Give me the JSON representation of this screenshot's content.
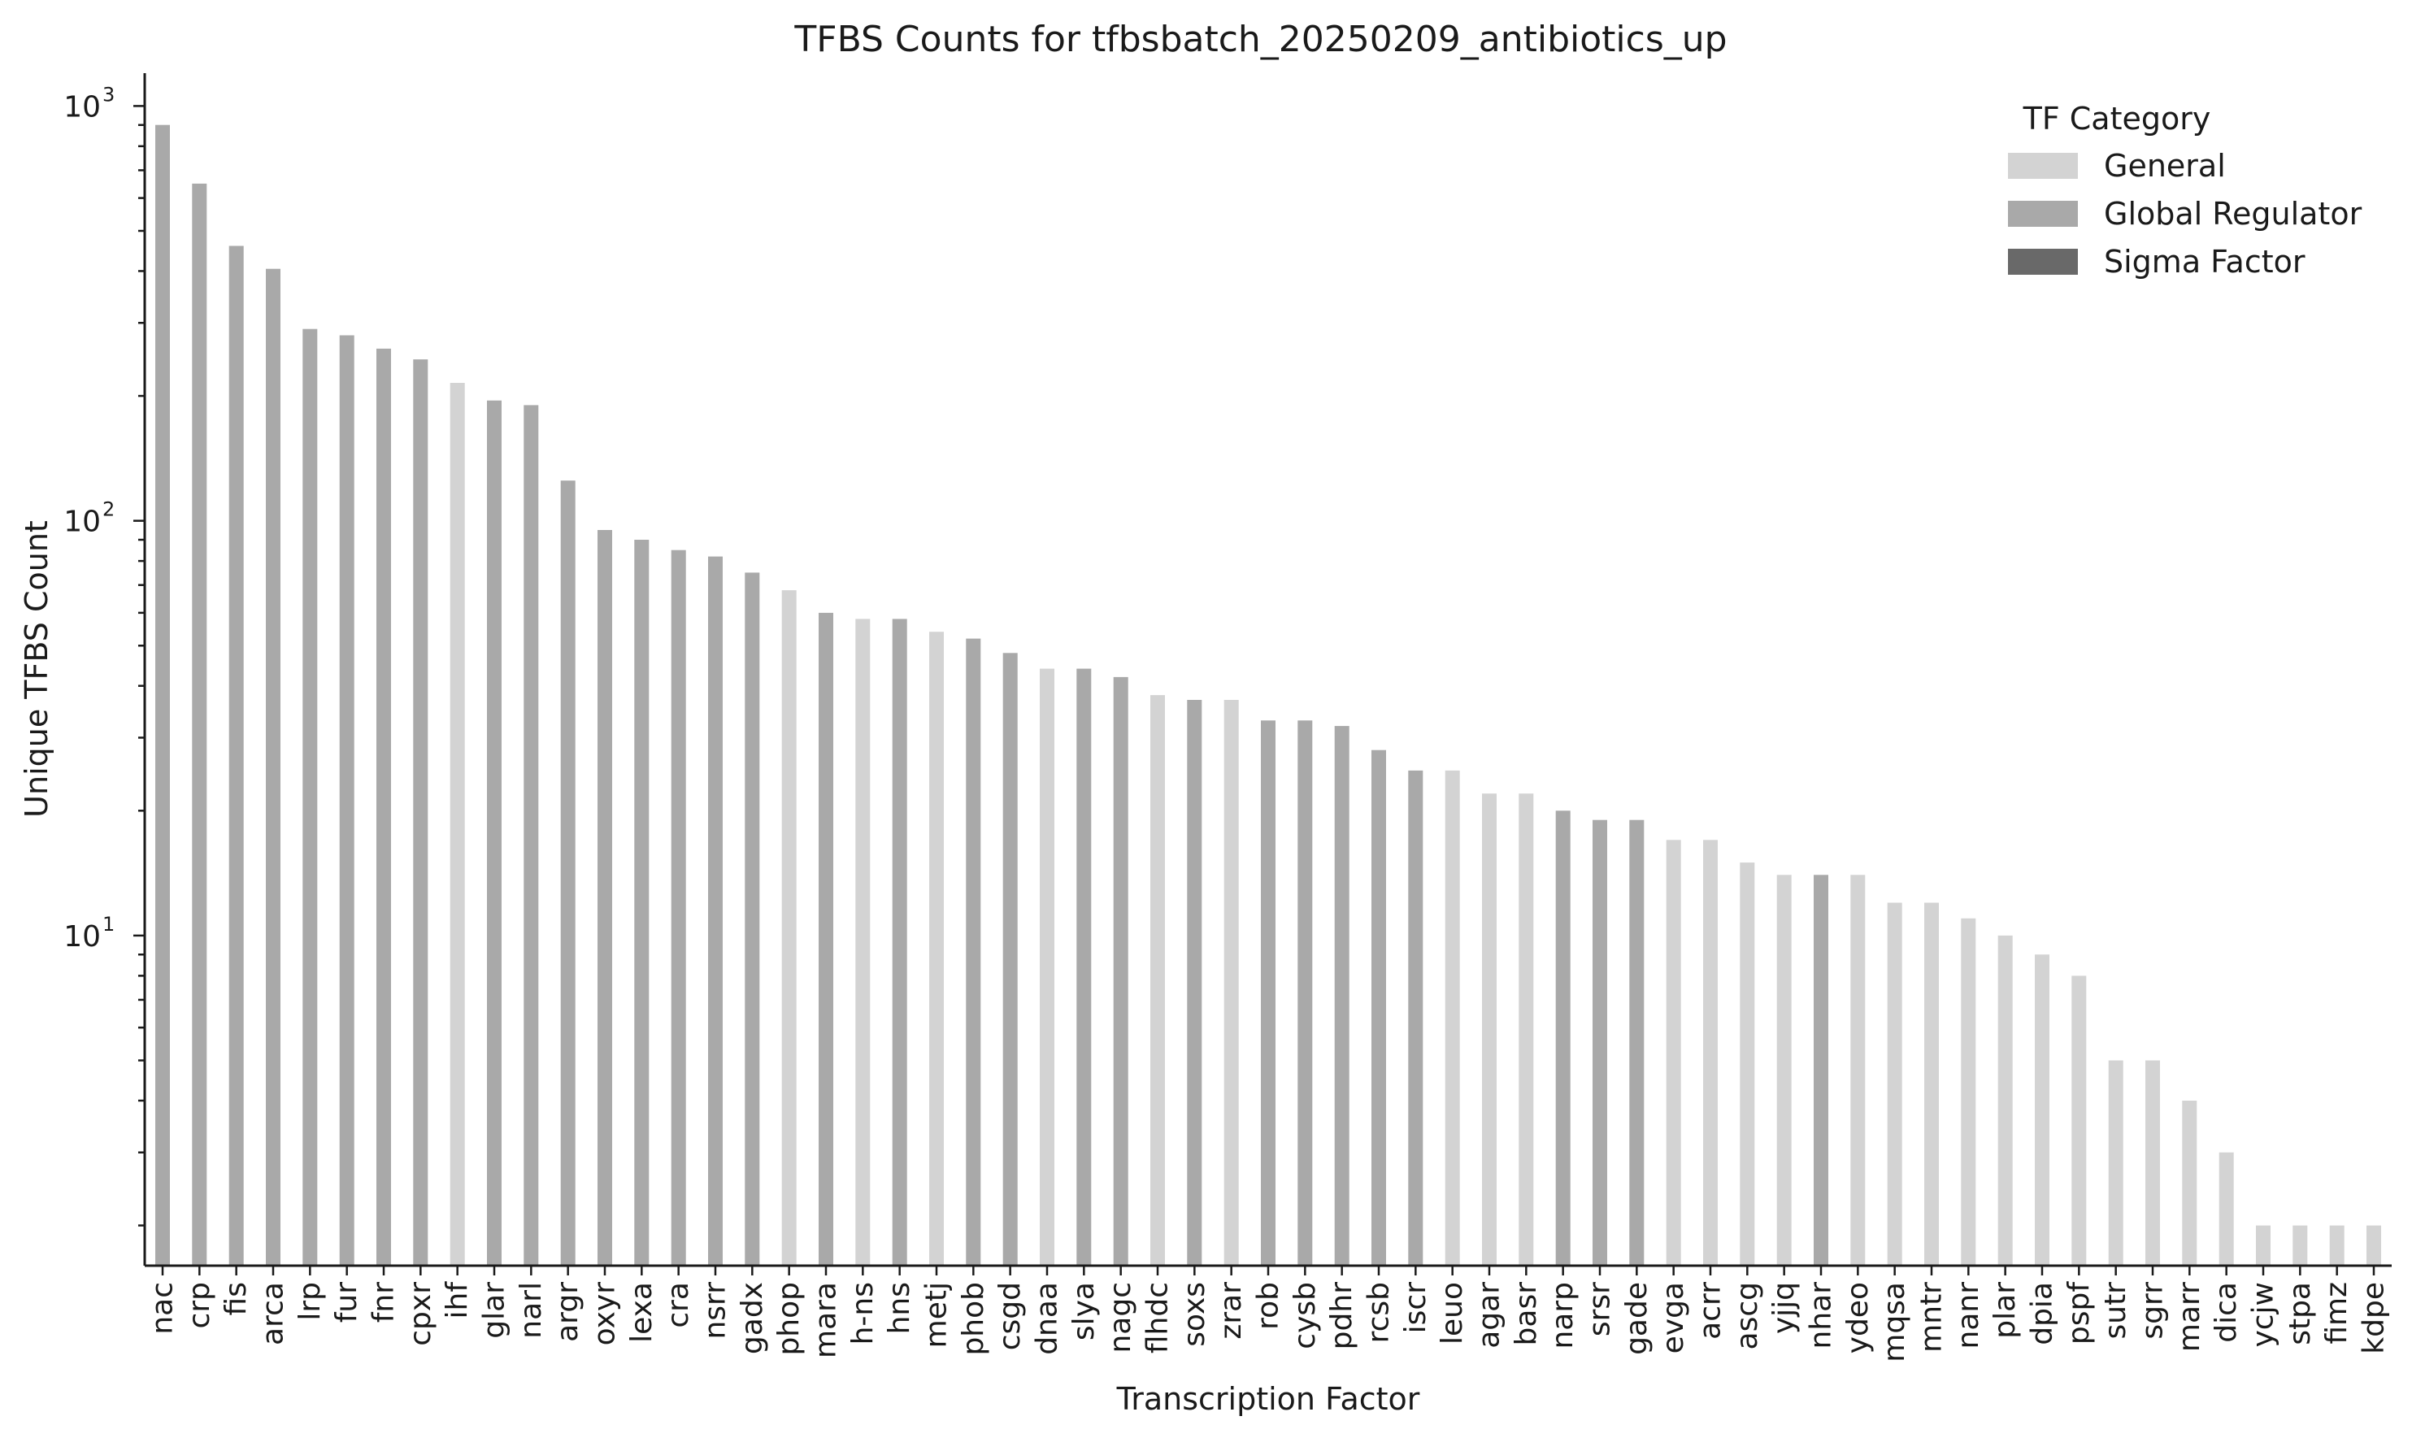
{
  "chart_data": {
    "type": "bar",
    "title": "TFBS Counts for tfbsbatch_20250209_antibiotics_up",
    "xlabel": "Transcription Factor",
    "ylabel": "Unique TFBS Count",
    "yscale": "log",
    "ylim": [
      1.6,
      1200
    ],
    "y_ticks": [
      {
        "value": 10,
        "base": "10",
        "exp": "1"
      },
      {
        "value": 100,
        "base": "10",
        "exp": "2"
      },
      {
        "value": 1000,
        "base": "10",
        "exp": "3"
      }
    ],
    "grid": false,
    "legend": {
      "title": "TF Category",
      "placement": "top-right",
      "entries": [
        {
          "key": "general",
          "label": "General",
          "color": "#d3d3d3"
        },
        {
          "key": "global",
          "label": "Global Regulator",
          "color": "#a9a9a9"
        },
        {
          "key": "sigma",
          "label": "Sigma Factor",
          "color": "#696969"
        }
      ]
    },
    "colors": {
      "general": "#d3d3d3",
      "global": "#a9a9a9",
      "sigma": "#696969"
    },
    "categories": [
      "nac",
      "crp",
      "fis",
      "arca",
      "lrp",
      "fur",
      "fnr",
      "cpxr",
      "ihf",
      "glar",
      "narl",
      "argr",
      "oxyr",
      "lexa",
      "cra",
      "nsrr",
      "gadx",
      "phop",
      "mara",
      "h-ns",
      "hns",
      "metj",
      "phob",
      "csgd",
      "dnaa",
      "slya",
      "nagc",
      "flhdc",
      "soxs",
      "zrar",
      "rob",
      "cysb",
      "pdhr",
      "rcsb",
      "iscr",
      "leuo",
      "agar",
      "basr",
      "narp",
      "srsr",
      "gade",
      "evga",
      "acrr",
      "ascg",
      "yjjq",
      "nhar",
      "ydeo",
      "mqsa",
      "mntr",
      "nanr",
      "plar",
      "dpia",
      "pspf",
      "sutr",
      "sgrr",
      "marr",
      "dica",
      "ycjw",
      "stpa",
      "fimz",
      "kdpe"
    ],
    "values": [
      900,
      650,
      460,
      405,
      290,
      280,
      260,
      245,
      215,
      195,
      190,
      125,
      95,
      90,
      85,
      82,
      75,
      68,
      60,
      58,
      58,
      54,
      52,
      48,
      44,
      44,
      42,
      38,
      37,
      37,
      33,
      33,
      32,
      28,
      25,
      25,
      22,
      22,
      20,
      19,
      19,
      17,
      17,
      15,
      14,
      14,
      14,
      12,
      12,
      11,
      10,
      9,
      8,
      5,
      5,
      4,
      3,
      2,
      2,
      2,
      2
    ],
    "bar_categories": [
      "global",
      "global",
      "global",
      "global",
      "global",
      "global",
      "global",
      "global",
      "general",
      "global",
      "global",
      "global",
      "global",
      "global",
      "global",
      "global",
      "global",
      "general",
      "global",
      "general",
      "global",
      "general",
      "global",
      "global",
      "general",
      "global",
      "global",
      "general",
      "global",
      "general",
      "global",
      "global",
      "global",
      "global",
      "global",
      "general",
      "general",
      "general",
      "global",
      "global",
      "global",
      "general",
      "general",
      "general",
      "general",
      "global",
      "general",
      "general",
      "general",
      "general",
      "general",
      "general",
      "general",
      "general",
      "general",
      "general",
      "general",
      "general",
      "general",
      "general",
      "general"
    ]
  }
}
